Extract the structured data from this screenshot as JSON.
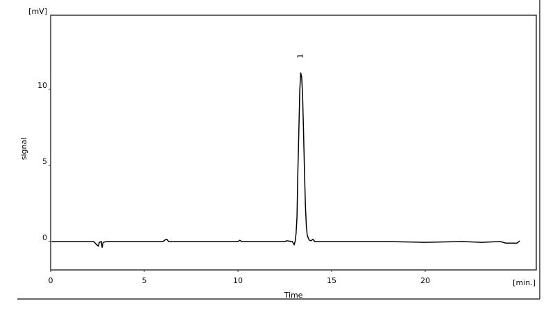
{
  "chart_data": {
    "type": "line",
    "xlabel": "Time",
    "ylabel": "signal",
    "x_unit": "[min.]",
    "y_unit": "[mV]",
    "xlim": [
      0,
      26
    ],
    "ylim": [
      -1.9,
      14.8
    ],
    "x_ticks": [
      "0",
      "5",
      "10",
      "15",
      "20"
    ],
    "x_tick_values": [
      0,
      5,
      10,
      15,
      20
    ],
    "y_ticks": [
      "0",
      "5",
      "10"
    ],
    "y_tick_values": [
      0,
      5,
      10
    ],
    "grid": false,
    "series": [
      {
        "color": "#000000",
        "points": [
          [
            0.05,
            0
          ],
          [
            2.3,
            0
          ],
          [
            2.45,
            -0.2
          ],
          [
            2.55,
            -0.3
          ],
          [
            2.6,
            -0.05
          ],
          [
            2.7,
            0
          ],
          [
            2.75,
            -0.4
          ],
          [
            2.8,
            -0.05
          ],
          [
            3.0,
            0
          ],
          [
            6.0,
            0
          ],
          [
            6.1,
            0.1
          ],
          [
            6.2,
            0.15
          ],
          [
            6.3,
            0
          ],
          [
            10.0,
            0
          ],
          [
            10.1,
            0.08
          ],
          [
            10.2,
            0
          ],
          [
            12.5,
            0
          ],
          [
            12.6,
            0.05
          ],
          [
            12.9,
            0
          ],
          [
            13.0,
            -0.2
          ],
          [
            13.05,
            0
          ],
          [
            13.1,
            0.5
          ],
          [
            13.15,
            1.6
          ],
          [
            13.2,
            4.7
          ],
          [
            13.25,
            7.3
          ],
          [
            13.3,
            9.9
          ],
          [
            13.35,
            11.1
          ],
          [
            13.4,
            10.8
          ],
          [
            13.45,
            9.7
          ],
          [
            13.5,
            7.3
          ],
          [
            13.55,
            4.6
          ],
          [
            13.6,
            2.4
          ],
          [
            13.65,
            1.0
          ],
          [
            13.7,
            0.4
          ],
          [
            13.8,
            0.1
          ],
          [
            13.9,
            0.05
          ],
          [
            14.0,
            0.15
          ],
          [
            14.1,
            0
          ],
          [
            18.0,
            0
          ],
          [
            20.0,
            -0.05
          ],
          [
            22.0,
            0
          ],
          [
            23.0,
            -0.05
          ],
          [
            24.0,
            0
          ],
          [
            24.3,
            -0.1
          ],
          [
            24.9,
            -0.1
          ],
          [
            25.05,
            0.05
          ]
        ]
      }
    ],
    "peak_labels": [
      {
        "x": 13.35,
        "label": "1"
      }
    ]
  }
}
